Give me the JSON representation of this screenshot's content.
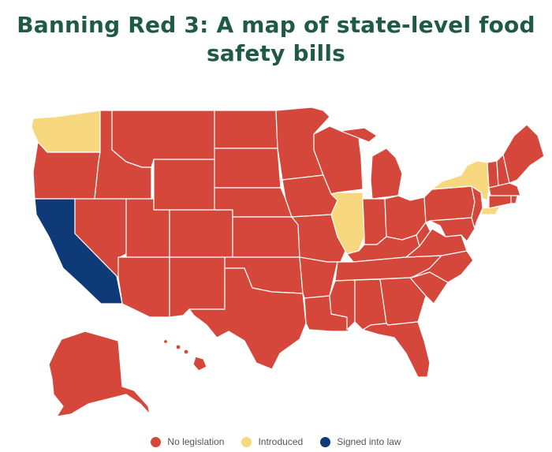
{
  "title": {
    "line1": "Banning Red 3: A map of state-level food",
    "line2": "safety bills"
  },
  "colors": {
    "no_legislation": "#d4473a",
    "introduced": "#f7d87f",
    "signed": "#0e3a78",
    "border": "#ffffff",
    "title": "#1f5a45"
  },
  "legend": [
    {
      "label": "No legislation",
      "color_key": "no_legislation"
    },
    {
      "label": "Introduced",
      "color_key": "introduced"
    },
    {
      "label": "Signed into law",
      "color_key": "signed"
    }
  ],
  "states": {
    "introduced": [
      "Washington",
      "Illinois",
      "New York",
      "New Jersey"
    ],
    "signed_into_law": [
      "California"
    ],
    "no_legislation": "all other states"
  }
}
